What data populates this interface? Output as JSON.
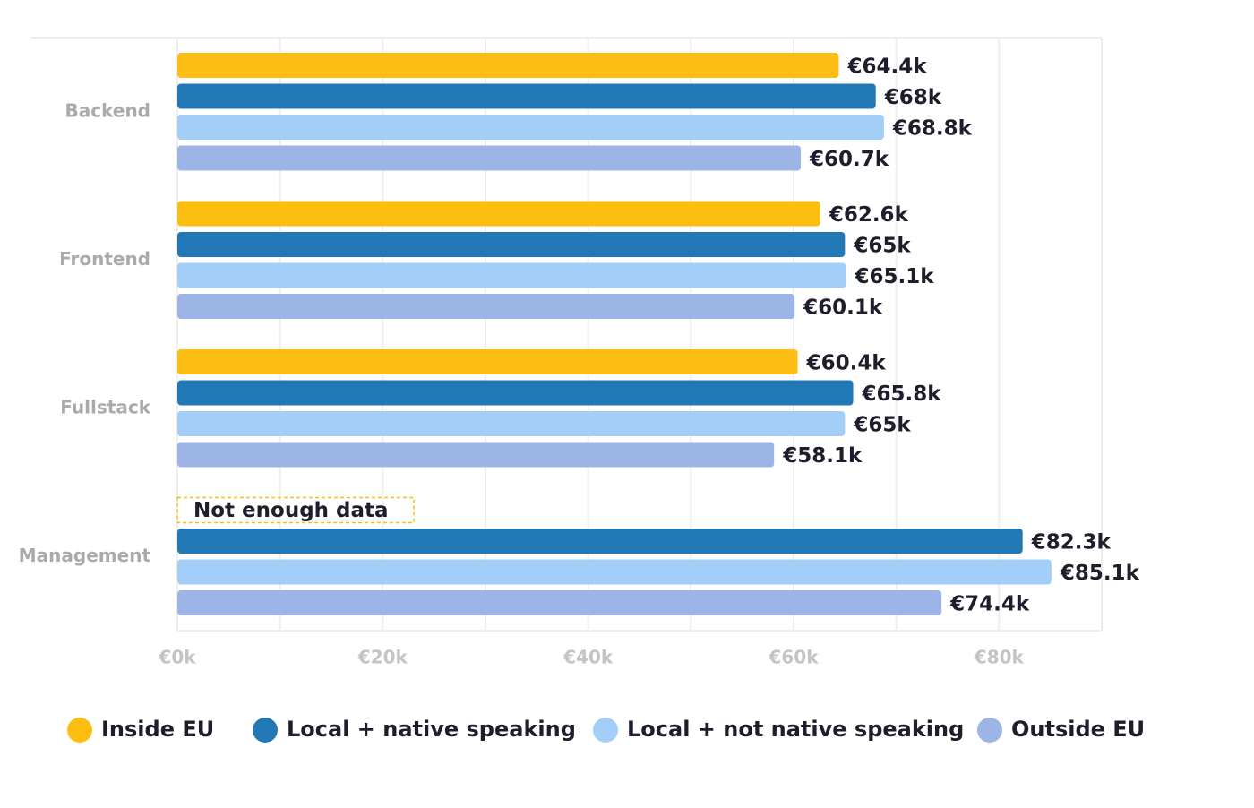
{
  "chart_data": {
    "type": "hbar",
    "categories": [
      "Backend",
      "Frontend",
      "Fullstack",
      "Management"
    ],
    "series": [
      {
        "name": "Inside EU",
        "color": "#FDBE14",
        "values": [
          64400,
          62600,
          60400,
          null
        ],
        "value_labels": [
          "€64.4k",
          "€62.6k",
          "€60.4k",
          null
        ]
      },
      {
        "name": "Local + native speaking",
        "color": "#2178B5",
        "values": [
          68000,
          65000,
          65800,
          82300
        ],
        "value_labels": [
          "€68k",
          "€65k",
          "€65.8k",
          "€82.3k"
        ]
      },
      {
        "name": "Local + not native speaking",
        "color": "#A3CEF8",
        "values": [
          68800,
          65100,
          65000,
          85100
        ],
        "value_labels": [
          "€68.8k",
          "€65.1k",
          "€65k",
          "€85.1k"
        ]
      },
      {
        "name": "Outside EU",
        "color": "#9DB4E6",
        "values": [
          60700,
          60100,
          58100,
          74400
        ],
        "value_labels": [
          "€60.7k",
          "€60.1k",
          "€58.1k",
          "€74.4k"
        ]
      }
    ],
    "annotation": "Not enough data",
    "xlim": [
      0,
      90000
    ],
    "xticks": [
      {
        "value": 0,
        "label": "€0k"
      },
      {
        "value": 20000,
        "label": "€20k"
      },
      {
        "value": 40000,
        "label": "€40k"
      },
      {
        "value": 60000,
        "label": "€60k"
      },
      {
        "value": 80000,
        "label": "€80k"
      }
    ],
    "minor_xticks": [
      10000,
      30000,
      50000,
      70000,
      90000
    ],
    "grid": true,
    "legend": "bottom"
  }
}
